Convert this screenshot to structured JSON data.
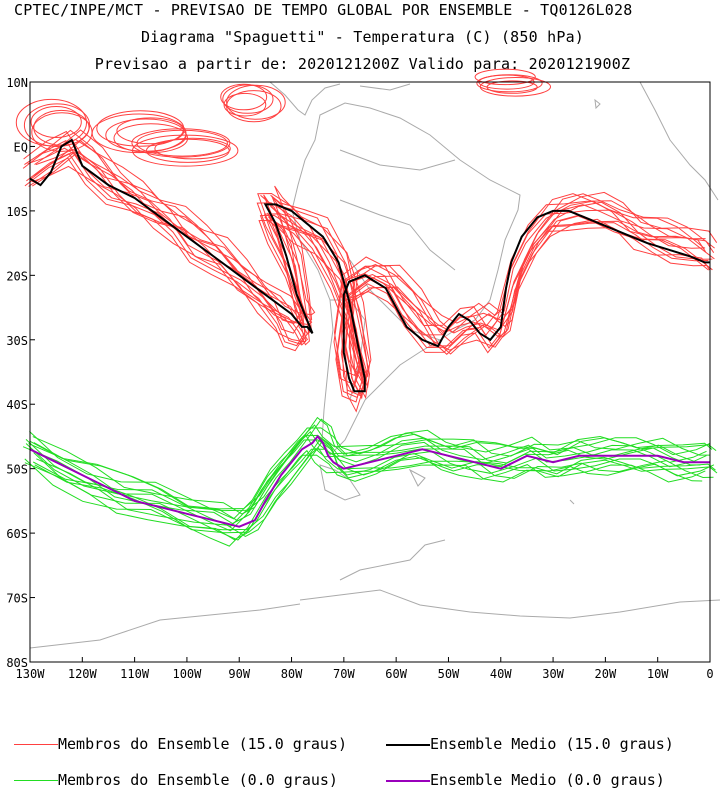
{
  "header": {
    "line1": "CPTEC/INPE/MCT - PREVISAO DE TEMPO GLOBAL POR ENSEMBLE - TQ0126L028",
    "line2": "Diagrama \"Spaguetti\" - Temperatura (C) (850 hPa)",
    "line3": "Previsao a partir de: 2020121200Z  Valido para: 2020121900Z"
  },
  "chart_data": {
    "type": "line",
    "title": "Diagrama \"Spaguetti\" - Temperatura (C) (850 hPa)",
    "xlabel": "",
    "ylabel": "",
    "xlim": [
      -130,
      0
    ],
    "ylim": [
      -80,
      10
    ],
    "x_ticks": [
      {
        "value": -130,
        "label": "130W"
      },
      {
        "value": -120,
        "label": "120W"
      },
      {
        "value": -110,
        "label": "110W"
      },
      {
        "value": -100,
        "label": "100W"
      },
      {
        "value": -90,
        "label": "90W"
      },
      {
        "value": -80,
        "label": "80W"
      },
      {
        "value": -70,
        "label": "70W"
      },
      {
        "value": -60,
        "label": "60W"
      },
      {
        "value": -50,
        "label": "50W"
      },
      {
        "value": -40,
        "label": "40W"
      },
      {
        "value": -30,
        "label": "30W"
      },
      {
        "value": -20,
        "label": "20W"
      },
      {
        "value": -10,
        "label": "10W"
      },
      {
        "value": 0,
        "label": "0"
      }
    ],
    "y_ticks": [
      {
        "value": 10,
        "label": "10N"
      },
      {
        "value": 0,
        "label": "EQ"
      },
      {
        "value": -10,
        "label": "10S"
      },
      {
        "value": -20,
        "label": "20S"
      },
      {
        "value": -30,
        "label": "30S"
      },
      {
        "value": -40,
        "label": "40S"
      },
      {
        "value": -50,
        "label": "50S"
      },
      {
        "value": -60,
        "label": "60S"
      },
      {
        "value": -70,
        "label": "70S"
      },
      {
        "value": -80,
        "label": "80S"
      }
    ],
    "series": [
      {
        "name": "Ensemble Medio (15.0 graus)",
        "color": "#000000",
        "lon": [
          -130,
          -128,
          -126,
          -125,
          -124,
          -122,
          -120,
          -115,
          -110,
          -105,
          -100,
          -95,
          -90,
          -85,
          -80,
          -78,
          -77,
          -76,
          -77,
          -79,
          -81,
          -83,
          -85,
          -83,
          -80,
          -77,
          -74,
          -71,
          -69,
          -67,
          -66,
          -66,
          -68,
          -69,
          -70,
          -70,
          -69,
          -66,
          -62,
          -58,
          -55,
          -52,
          -50,
          -48,
          -46,
          -44,
          -42,
          -40,
          -39,
          -38,
          -36,
          -33,
          -30,
          -27,
          -24,
          -21,
          -18,
          -15,
          -12,
          -8,
          -4,
          -1,
          0
        ],
        "lat": [
          -5,
          -6,
          -4,
          -2,
          0,
          1,
          -3,
          -6,
          -8,
          -11,
          -14,
          -17,
          -20,
          -23,
          -26,
          -28,
          -28,
          -29,
          -27,
          -23,
          -17,
          -12,
          -9,
          -9,
          -10,
          -12,
          -14,
          -18,
          -24,
          -32,
          -36,
          -38,
          -38,
          -36,
          -32,
          -23,
          -21,
          -20,
          -22,
          -28,
          -30,
          -31,
          -28,
          -26,
          -27,
          -29,
          -30,
          -28,
          -22,
          -18,
          -14,
          -11,
          -10,
          -10,
          -11,
          -12,
          -13,
          -14,
          -15,
          -16,
          -17,
          -18,
          -18
        ]
      },
      {
        "name": "Ensemble Medio (0.0 graus)",
        "color": "#9900bb",
        "lon": [
          -130,
          -125,
          -120,
          -115,
          -110,
          -105,
          -100,
          -95,
          -90,
          -87,
          -85,
          -82,
          -80,
          -78,
          -76,
          -75,
          -74,
          -73,
          -72,
          -70,
          -65,
          -60,
          -55,
          -50,
          -45,
          -40,
          -35,
          -30,
          -25,
          -20,
          -15,
          -10,
          -5,
          0
        ],
        "lat": [
          -47,
          -49,
          -51,
          -53,
          -55,
          -56,
          -57,
          -58,
          -59,
          -58,
          -55,
          -51,
          -49,
          -47,
          -46,
          -45,
          -46,
          -48,
          -49,
          -50,
          -49,
          -48,
          -47,
          -48,
          -49,
          -50,
          -48,
          -49,
          -48,
          -48,
          -48,
          -48,
          -49,
          -49
        ]
      },
      {
        "name": "Membros do Ensemble (15.0 graus)",
        "color": "#ff4040",
        "members": 14,
        "lon": [
          -130,
          -126,
          -122,
          -118,
          -114,
          -110,
          -106,
          -102,
          -98,
          -94,
          -90,
          -86,
          -82,
          -80,
          -78,
          -77,
          -78,
          -80,
          -83,
          -85,
          -83,
          -79,
          -75,
          -71,
          -68,
          -66,
          -67,
          -69,
          -70,
          -69,
          -65,
          -61,
          -57,
          -53,
          -50,
          -47,
          -44,
          -41,
          -39,
          -37,
          -34,
          -30,
          -26,
          -22,
          -18,
          -14,
          -10,
          -6,
          -2,
          0
        ],
        "lat": [
          -4,
          -2,
          0,
          -3,
          -6,
          -8,
          -10,
          -12,
          -15,
          -17,
          -20,
          -23,
          -26,
          -28,
          -29,
          -28,
          -25,
          -18,
          -12,
          -9,
          -10,
          -12,
          -14,
          -19,
          -27,
          -35,
          -38,
          -36,
          -30,
          -22,
          -20,
          -21,
          -25,
          -29,
          -30,
          -28,
          -27,
          -29,
          -27,
          -20,
          -15,
          -11,
          -10,
          -10,
          -11,
          -13,
          -14,
          -15,
          -16,
          -17
        ]
      },
      {
        "name": "Membros do Ensemble (0.0 graus)",
        "color": "#22dd22",
        "members": 14,
        "lon": [
          -130,
          -124,
          -118,
          -112,
          -106,
          -100,
          -94,
          -90,
          -87,
          -84,
          -81,
          -78,
          -76,
          -74,
          -72,
          -70,
          -66,
          -62,
          -58,
          -54,
          -50,
          -46,
          -42,
          -38,
          -34,
          -30,
          -26,
          -22,
          -18,
          -14,
          -10,
          -6,
          -2,
          0
        ],
        "lat": [
          -47,
          -50,
          -52,
          -54,
          -55,
          -57,
          -58,
          -59,
          -57,
          -53,
          -50,
          -47,
          -45,
          -46,
          -48,
          -49,
          -49,
          -48,
          -47,
          -47,
          -48,
          -48,
          -49,
          -49,
          -48,
          -49,
          -48,
          -48,
          -48,
          -48,
          -48,
          -49,
          -49,
          -49
        ]
      }
    ],
    "legend": [
      {
        "label": "Membros do Ensemble (15.0 graus)",
        "color": "#ff4040"
      },
      {
        "label": "Ensemble Medio (15.0 graus)",
        "color": "#000000"
      },
      {
        "label": "Membros do Ensemble (0.0 graus)",
        "color": "#22dd22"
      },
      {
        "label": "Ensemble Medio (0.0 graus)",
        "color": "#9900bb"
      }
    ]
  }
}
